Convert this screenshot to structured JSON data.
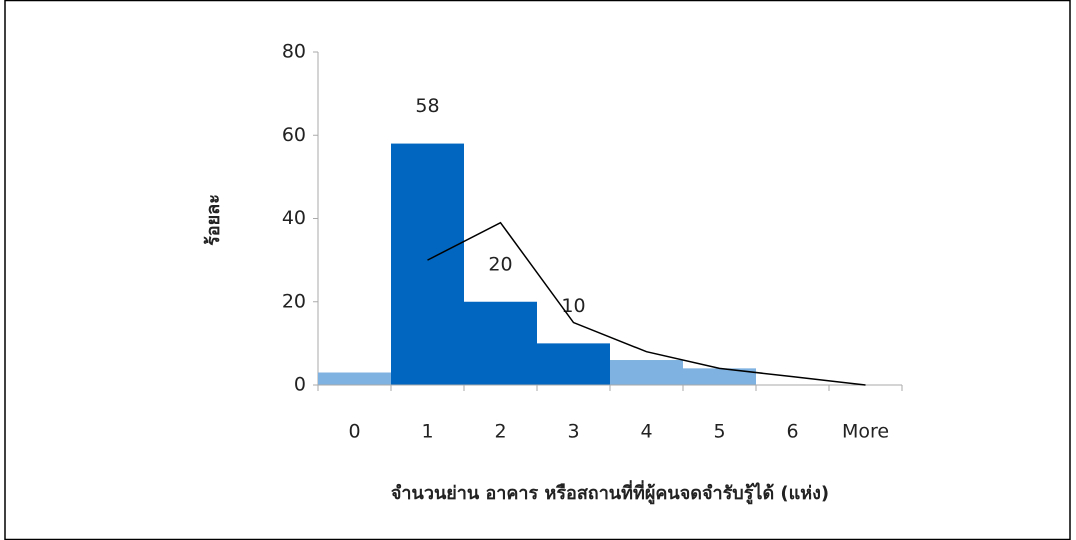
{
  "chart_data": {
    "type": "bar",
    "x_label": "จำนวนย่าน อาคาร หรือสถานที่ที่ผู้คนจดจำรับรู้ได้ (แห่ง)",
    "y_label": "ร้อยละ",
    "categories": [
      "0",
      "1",
      "2",
      "3",
      "4",
      "5",
      "6",
      "More"
    ],
    "values": [
      3,
      58,
      20,
      10,
      6,
      4,
      0,
      0
    ],
    "colors": [
      "#7fb2e0",
      "#0066bf",
      "#0066bf",
      "#0066bf",
      "#7fb2e0",
      "#7fb2e0",
      "#7fb2e0",
      "#7fb2e0"
    ],
    "show_labels": [
      false,
      true,
      true,
      true,
      false,
      false,
      false,
      false
    ],
    "series": [
      {
        "color": "#000000",
        "values": [
          null,
          30,
          39,
          15,
          8,
          4,
          2,
          0
        ]
      }
    ],
    "ylim": [
      0,
      80
    ],
    "yticks": [
      0,
      20,
      40,
      60,
      80
    ],
    "grid": false
  }
}
